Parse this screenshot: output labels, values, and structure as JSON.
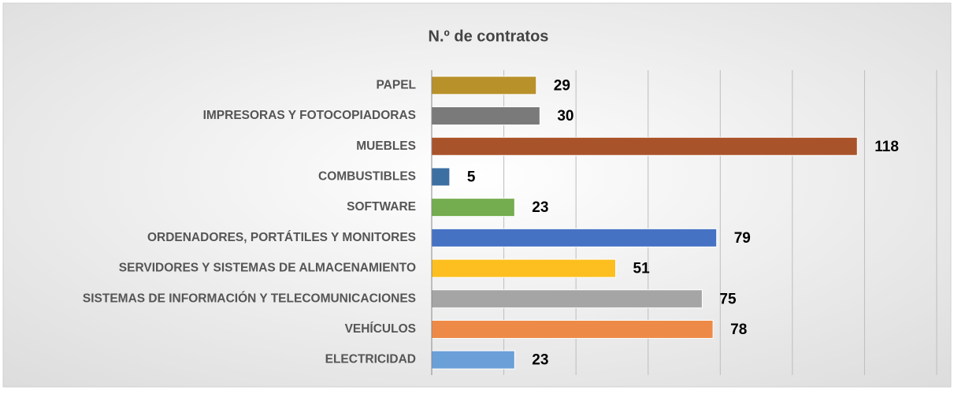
{
  "chart_data": {
    "type": "bar",
    "orientation": "horizontal",
    "title": "N.º de contratos",
    "categories": [
      "PAPEL",
      "IMPRESORAS Y FOTOCOPIADORAS",
      "MUEBLES",
      "COMBUSTIBLES",
      "SOFTWARE",
      "ORDENADORES, PORTÁTILES Y MONITORES",
      "SERVIDORES Y SISTEMAS DE ALMACENAMIENTO",
      "SISTEMAS DE INFORMACIÓN Y TELECOMUNICACIONES",
      "VEHÍCULOS",
      "ELECTRICIDAD"
    ],
    "values": [
      29,
      30,
      118,
      5,
      23,
      79,
      51,
      75,
      78,
      23
    ],
    "colors": [
      "#b8912b",
      "#7a7a7a",
      "#a9532a",
      "#3d6fa3",
      "#73ad4f",
      "#4672c4",
      "#fdbf1f",
      "#a5a5a5",
      "#ed8a48",
      "#6a9fd8"
    ],
    "xlim": [
      0,
      140
    ],
    "xticks": [
      0,
      20,
      40,
      60,
      80,
      100,
      120,
      140
    ],
    "grid": true
  }
}
